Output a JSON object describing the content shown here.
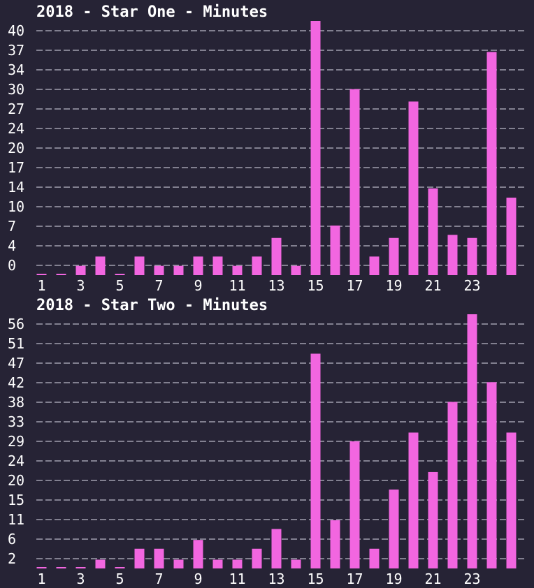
{
  "chart_data": [
    {
      "type": "bar",
      "title": "2018 - Star One - Minutes",
      "xlabel": "",
      "ylabel": "",
      "x_tick_labels": [
        "1",
        "3",
        "5",
        "7",
        "9",
        "11",
        "13",
        "15",
        "17",
        "19",
        "21",
        "23"
      ],
      "y_tick_labels": [
        "40",
        "37",
        "34",
        "30",
        "27",
        "24",
        "20",
        "17",
        "14",
        "10",
        "7",
        "4",
        "0"
      ],
      "ylim": [
        0,
        41
      ],
      "grid": true,
      "legend": "none",
      "bar_color": "#f266e0",
      "categories": [
        1,
        2,
        3,
        4,
        5,
        6,
        7,
        8,
        9,
        10,
        11,
        12,
        13,
        14,
        15,
        16,
        17,
        18,
        19,
        20,
        21,
        22,
        23,
        24,
        25
      ],
      "values": [
        0,
        0,
        1.5,
        3,
        0,
        3,
        1.5,
        1.5,
        3,
        3,
        1.5,
        3,
        6,
        1.5,
        41,
        8,
        30,
        3,
        6,
        28,
        14,
        6.5,
        6,
        36,
        12.5
      ]
    },
    {
      "type": "bar",
      "title": "2018 - Star Two - Minutes",
      "xlabel": "",
      "ylabel": "",
      "x_tick_labels": [
        "1",
        "3",
        "5",
        "7",
        "9",
        "11",
        "13",
        "15",
        "17",
        "19",
        "21",
        "23"
      ],
      "y_tick_labels": [
        "56",
        "51",
        "47",
        "42",
        "38",
        "33",
        "29",
        "24",
        "20",
        "15",
        "11",
        "6",
        "2"
      ],
      "ylim": [
        0,
        58
      ],
      "grid": true,
      "legend": "none",
      "bar_color": "#f266e0",
      "categories": [
        1,
        2,
        3,
        4,
        5,
        6,
        7,
        8,
        9,
        10,
        11,
        12,
        13,
        14,
        15,
        16,
        17,
        18,
        19,
        20,
        21,
        22,
        23,
        24,
        25
      ],
      "values": [
        0,
        0,
        0,
        2,
        0,
        4.5,
        4.5,
        2,
        6.5,
        2,
        2,
        4.5,
        9,
        2,
        49,
        11,
        29,
        4.5,
        18,
        31,
        22,
        38,
        58,
        42.5,
        31
      ]
    }
  ]
}
